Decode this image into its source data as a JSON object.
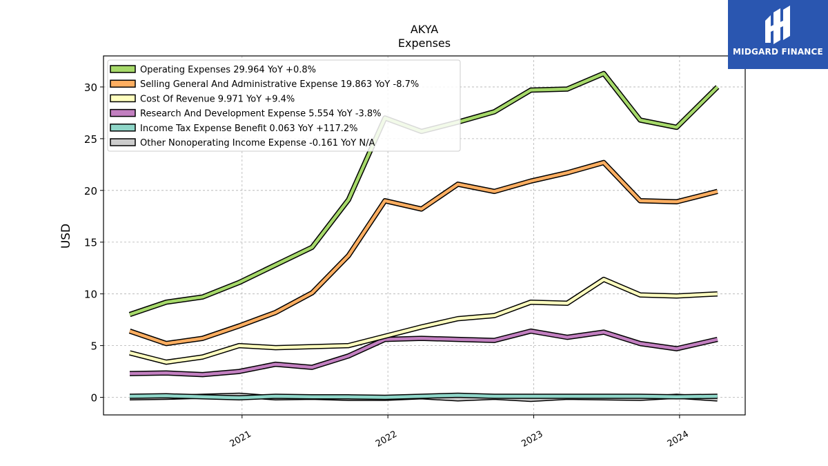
{
  "brand": {
    "name": "MIDGARD FINANCE",
    "background": "#2a56b0"
  },
  "chart_data": {
    "type": "line",
    "title": "AKYA",
    "subtitle": "Expenses",
    "ylabel": "USD",
    "xlabel": "",
    "ylim": [
      -1.7,
      33
    ],
    "xlim": [
      2020.05,
      2024.45
    ],
    "yticks": [
      0,
      5,
      10,
      15,
      20,
      25,
      30
    ],
    "xticks": [
      {
        "label": "2021",
        "value": 2021.0
      },
      {
        "label": "2022",
        "value": 2022.0
      },
      {
        "label": "2023",
        "value": 2023.0
      },
      {
        "label": "2024",
        "value": 2024.0
      }
    ],
    "grid": true,
    "legend_position": "top-left",
    "x": [
      2020.23,
      2020.48,
      2020.73,
      2020.98,
      2021.23,
      2021.48,
      2021.73,
      2021.98,
      2022.23,
      2022.48,
      2022.73,
      2022.98,
      2023.23,
      2023.48,
      2023.73,
      2023.98,
      2024.26
    ],
    "series": [
      {
        "name": "Operating Expenses",
        "legend": "Operating Expenses  29.964 YoY +0.8%",
        "color": "#a6d96a",
        "values": [
          8.0,
          9.2,
          9.7,
          11.1,
          12.8,
          14.5,
          19.1,
          27.0,
          25.7,
          26.6,
          27.6,
          29.7,
          29.8,
          31.3,
          26.8,
          26.1,
          30.0
        ]
      },
      {
        "name": "Selling General And Administrative Expense",
        "legend": "Selling General And Administrative Expense  19.863 YoY -8.7%",
        "color": "#fdae61",
        "values": [
          6.4,
          5.2,
          5.7,
          6.9,
          8.2,
          10.1,
          13.7,
          19.0,
          18.2,
          20.6,
          19.9,
          20.9,
          21.7,
          22.7,
          19.0,
          18.9,
          19.9
        ]
      },
      {
        "name": "Cost Of Revenue",
        "legend": "Cost Of Revenue  9.971 YoY +9.4%",
        "color": "#ffffbf",
        "values": [
          4.3,
          3.4,
          3.9,
          5.0,
          4.8,
          4.9,
          5.0,
          5.9,
          6.8,
          7.6,
          7.9,
          9.2,
          9.1,
          11.4,
          9.9,
          9.8,
          10.0
        ]
      },
      {
        "name": "Research And Development Expense",
        "legend": "Research And Development Expense  5.554 YoY -3.8%",
        "color": "#c27fc0",
        "values": [
          2.3,
          2.35,
          2.2,
          2.5,
          3.2,
          2.9,
          4.0,
          5.6,
          5.7,
          5.6,
          5.5,
          6.4,
          5.8,
          6.3,
          5.2,
          4.7,
          5.6
        ]
      },
      {
        "name": "Income Tax Expense Benefit",
        "legend": "Income Tax Expense Benefit  0.063 YoY +117.2%",
        "color": "#8fd6c8",
        "values": [
          0.1,
          0.15,
          0.05,
          -0.05,
          0.1,
          0.05,
          0.05,
          0.0,
          0.1,
          0.2,
          0.1,
          0.1,
          0.1,
          0.1,
          0.1,
          0.05,
          0.1
        ]
      },
      {
        "name": "Other Nonoperating Income Expense",
        "legend": "Other Nonoperating Income Expense  -0.161 YoY N/A",
        "color": "#cccccc",
        "values": [
          -0.05,
          0.0,
          0.1,
          0.2,
          -0.05,
          0.0,
          -0.1,
          -0.1,
          0.05,
          -0.15,
          0.0,
          -0.2,
          0.0,
          -0.05,
          -0.1,
          0.1,
          -0.16
        ]
      }
    ]
  }
}
